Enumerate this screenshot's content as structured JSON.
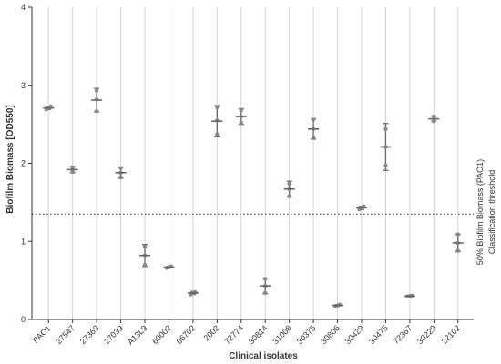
{
  "chart_data": {
    "type": "scatter",
    "xlabel": "Clinical isolates",
    "ylabel": "Biofilm Biomass [OD550]",
    "ylim": [
      0,
      4
    ],
    "yticks": [
      "0",
      "1",
      "2",
      "3",
      "4"
    ],
    "grid": "vertical lines at each isolate",
    "threshold": {
      "value": 1.35,
      "label_line1": "50% Biofilm Biomass (PAO1)",
      "label_line2": "Classification threshold"
    },
    "colors": {
      "points": "#888888",
      "mean_bar": "#666666",
      "grid": "#d4d4d4",
      "threshold": "#555555",
      "axis": "#333333"
    },
    "categories": [
      "PAO1",
      "27547",
      "27369",
      "27039",
      "A13L9",
      "60002",
      "66702",
      "2002",
      "72774",
      "30814",
      "31008",
      "30375",
      "30806",
      "30429",
      "30475",
      "72367",
      "30229",
      "22102"
    ],
    "series": [
      {
        "category": "PAO1",
        "mean": 2.71,
        "sd": 0.02,
        "points": [
          2.69,
          2.71,
          2.73
        ]
      },
      {
        "category": "27547",
        "mean": 1.92,
        "sd": 0.04,
        "points": [
          1.89,
          1.92,
          1.95
        ]
      },
      {
        "category": "27369",
        "mean": 2.81,
        "sd": 0.15,
        "points": [
          2.67,
          2.82,
          2.93
        ]
      },
      {
        "category": "27039",
        "mean": 1.88,
        "sd": 0.07,
        "points": [
          1.82,
          1.88,
          1.94
        ]
      },
      {
        "category": "A13L9",
        "mean": 0.82,
        "sd": 0.14,
        "points": [
          0.7,
          0.82,
          0.93
        ]
      },
      {
        "category": "60002",
        "mean": 0.67,
        "sd": 0.01,
        "points": [
          0.66,
          0.67,
          0.68
        ]
      },
      {
        "category": "66702",
        "mean": 0.34,
        "sd": 0.02,
        "points": [
          0.32,
          0.34,
          0.35
        ]
      },
      {
        "category": "2002",
        "mean": 2.54,
        "sd": 0.2,
        "points": [
          2.37,
          2.55,
          2.72
        ]
      },
      {
        "category": "72774",
        "mean": 2.6,
        "sd": 0.1,
        "points": [
          2.52,
          2.6,
          2.68
        ]
      },
      {
        "category": "30814",
        "mean": 0.43,
        "sd": 0.1,
        "points": [
          0.34,
          0.43,
          0.52
        ]
      },
      {
        "category": "31008",
        "mean": 1.67,
        "sd": 0.1,
        "points": [
          1.58,
          1.67,
          1.74
        ]
      },
      {
        "category": "30375",
        "mean": 2.44,
        "sd": 0.13,
        "points": [
          2.33,
          2.44,
          2.56
        ]
      },
      {
        "category": "30806",
        "mean": 0.18,
        "sd": 0.01,
        "points": [
          0.17,
          0.18,
          0.19
        ]
      },
      {
        "category": "30429",
        "mean": 1.43,
        "sd": 0.02,
        "points": [
          1.41,
          1.43,
          1.45
        ]
      },
      {
        "category": "30475",
        "mean": 2.21,
        "sd": 0.3,
        "points": [
          1.97,
          2.21,
          2.44
        ]
      },
      {
        "category": "72367",
        "mean": 0.3,
        "sd": 0.005,
        "points": [
          0.295,
          0.3,
          0.305
        ]
      },
      {
        "category": "30229",
        "mean": 2.57,
        "sd": 0.03,
        "points": [
          2.54,
          2.57,
          2.6
        ]
      },
      {
        "category": "22102",
        "mean": 0.98,
        "sd": 0.11,
        "points": [
          0.88,
          0.98,
          1.09
        ]
      }
    ]
  }
}
